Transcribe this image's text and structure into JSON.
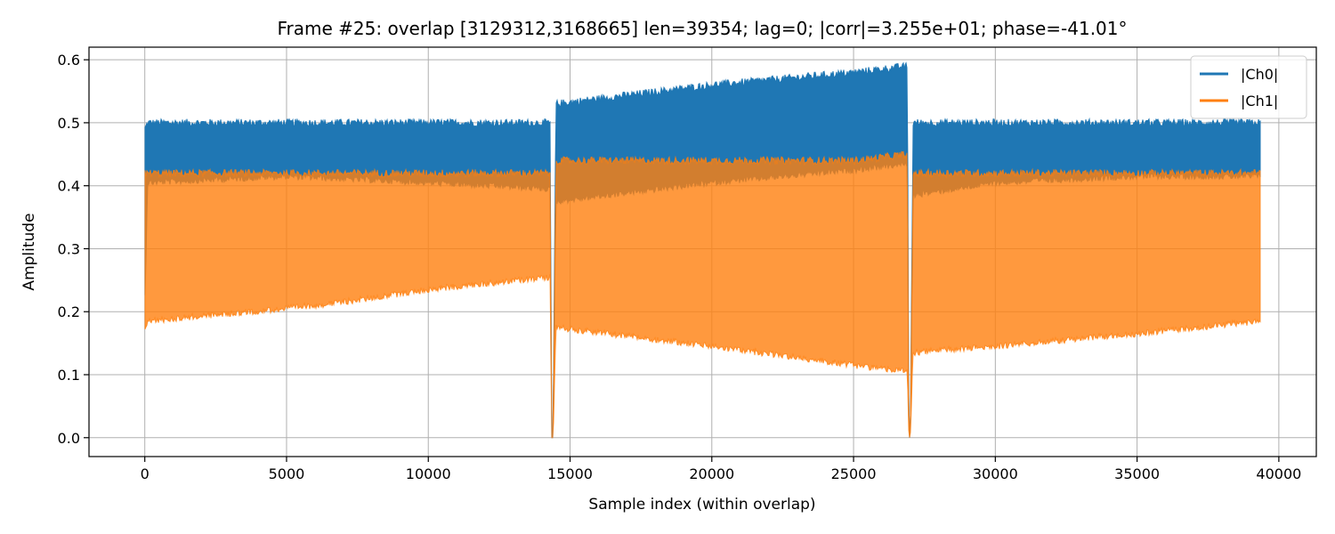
{
  "chart_data": {
    "type": "area",
    "title": "Frame #25: overlap [3129312,3168665]  len=39354; lag=0; |corr|=3.255e+01; phase=-41.01°",
    "xlabel": "Sample index (within overlap)",
    "ylabel": "Amplitude",
    "xlim": [
      -1968,
      41322
    ],
    "ylim": [
      -0.03,
      0.62
    ],
    "xticks": [
      0,
      5000,
      10000,
      15000,
      20000,
      25000,
      30000,
      35000,
      40000
    ],
    "xtick_labels": [
      "0",
      "5000",
      "10000",
      "15000",
      "20000",
      "25000",
      "30000",
      "35000",
      "40000"
    ],
    "yticks": [
      0.0,
      0.1,
      0.2,
      0.3,
      0.4,
      0.5,
      0.6
    ],
    "ytick_labels": [
      "0.0",
      "0.1",
      "0.2",
      "0.3",
      "0.4",
      "0.5",
      "0.6"
    ],
    "grid": true,
    "legend_position": "top-right",
    "series": [
      {
        "name": "|Ch0|",
        "color": "#1f77b4",
        "x": [
          0,
          100,
          5000,
          10000,
          14300,
          14350,
          14400,
          14500,
          20000,
          25000,
          26900,
          26950,
          27000,
          27100,
          30000,
          35000,
          39354
        ],
        "y_upper": [
          0.49,
          0.5,
          0.5,
          0.5,
          0.5,
          0.0,
          0.0,
          0.53,
          0.56,
          0.58,
          0.59,
          0.0,
          0.0,
          0.5,
          0.5,
          0.5,
          0.5
        ],
        "y_lower": [
          0.21,
          0.41,
          0.42,
          0.41,
          0.4,
          0.0,
          0.0,
          0.38,
          0.41,
          0.43,
          0.44,
          0.0,
          0.0,
          0.39,
          0.41,
          0.42,
          0.42
        ]
      },
      {
        "name": "|Ch1|",
        "color": "#ff7f0e",
        "x": [
          0,
          100,
          5000,
          7000,
          10000,
          14300,
          14350,
          14400,
          14500,
          20000,
          25000,
          26900,
          26950,
          27000,
          27100,
          30000,
          35000,
          39354
        ],
        "y_upper": [
          0.42,
          0.42,
          0.42,
          0.42,
          0.42,
          0.42,
          0.0,
          0.0,
          0.44,
          0.44,
          0.44,
          0.45,
          0.0,
          0.0,
          0.42,
          0.42,
          0.42,
          0.42
        ],
        "y_lower": [
          0.18,
          0.19,
          0.21,
          0.22,
          0.24,
          0.26,
          0.0,
          0.0,
          0.18,
          0.15,
          0.12,
          0.11,
          0.0,
          0.0,
          0.14,
          0.15,
          0.17,
          0.19
        ]
      }
    ]
  }
}
